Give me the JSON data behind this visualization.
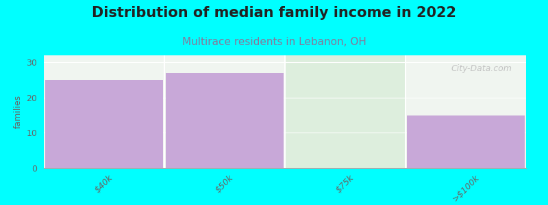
{
  "title": "Distribution of median family income in 2022",
  "subtitle": "Multirace residents in Lebanon, OH",
  "categories": [
    "$40k",
    "$50k",
    "$75k",
    ">$100k"
  ],
  "values": [
    25,
    27,
    0,
    15
  ],
  "bar_color": "#c8a8d8",
  "green_bg_color": "#ddeedd",
  "ylabel": "families",
  "ylim": [
    0,
    32
  ],
  "yticks": [
    0,
    10,
    20,
    30
  ],
  "background_color": "#00ffff",
  "plot_bg_color": "#f0f5f0",
  "title_fontsize": 15,
  "subtitle_fontsize": 11,
  "subtitle_color": "#887799",
  "watermark": "City-Data.com",
  "watermark_color": "#bbbbbb"
}
